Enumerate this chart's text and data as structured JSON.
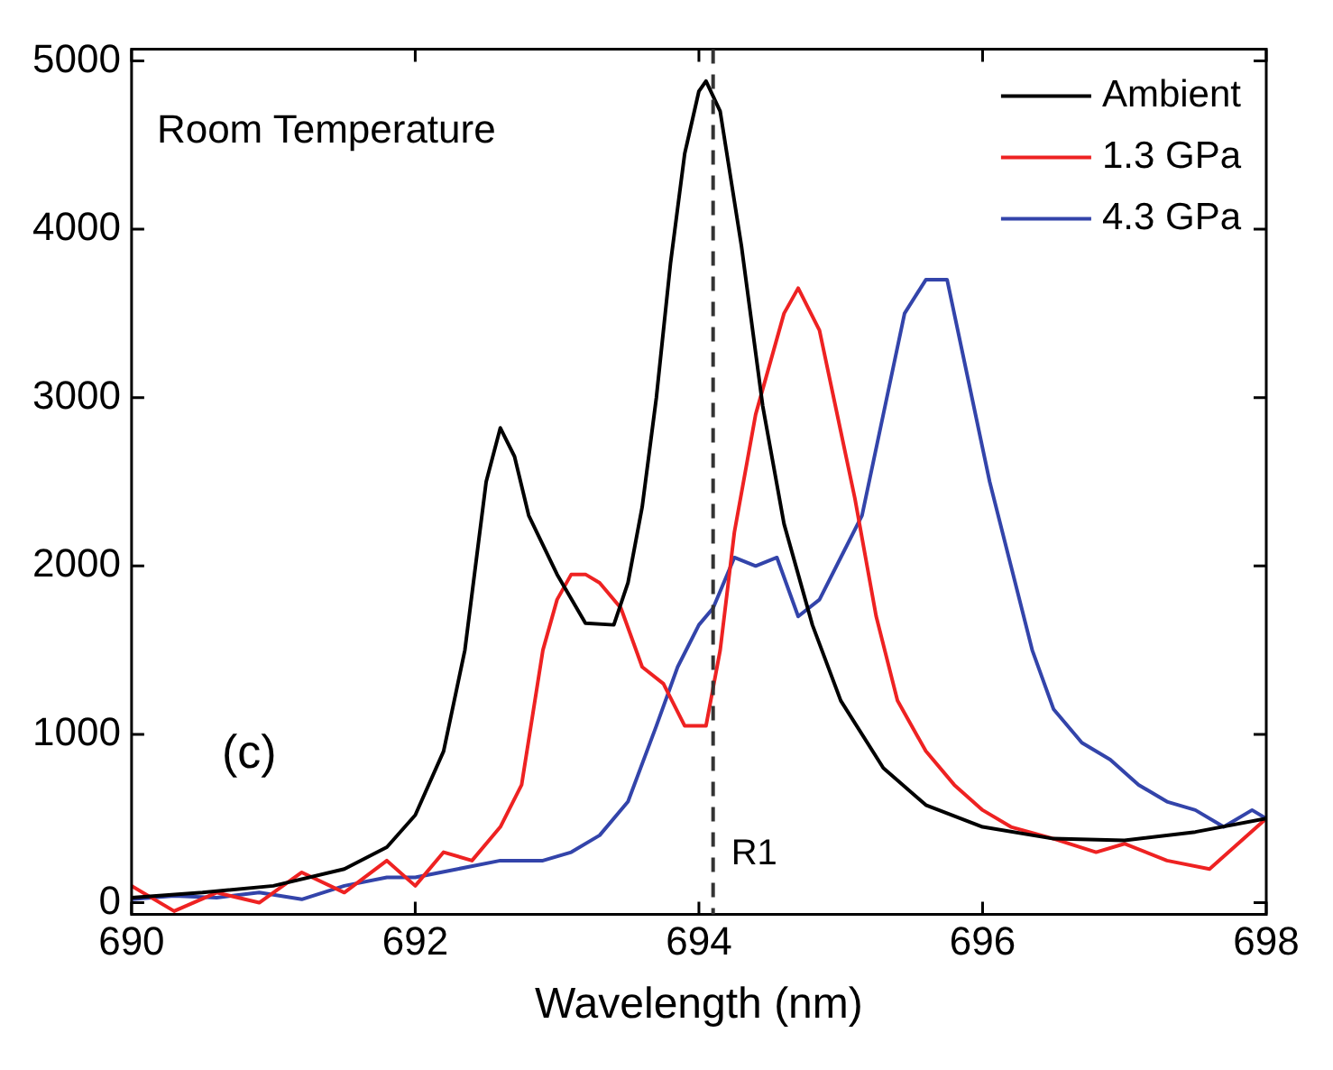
{
  "chart_data": {
    "type": "line",
    "xlabel": "Wavelength (nm)",
    "xlim": [
      690,
      698
    ],
    "xticks": [
      690,
      692,
      694,
      696,
      698
    ],
    "ylim": [
      -70,
      5070
    ],
    "yticks": [
      0,
      1000,
      2000,
      3000,
      4000,
      5000
    ],
    "legend": "top right",
    "marker": "none",
    "line_style": "solid",
    "annotations": [
      "Room Temperature",
      "(c)"
    ],
    "ref_lines": [
      {
        "axis": "x",
        "value": 694.1,
        "label": "R1",
        "color": "#333333",
        "line_style": "dashed"
      }
    ],
    "series": [
      {
        "name": "Ambient",
        "color": "#000000",
        "x": [
          690,
          690.5,
          691,
          691.5,
          691.8,
          692,
          692.2,
          692.35,
          692.5,
          692.6,
          692.7,
          692.8,
          693,
          693.2,
          693.4,
          693.5,
          693.6,
          693.7,
          693.8,
          693.9,
          694,
          694.05,
          694.15,
          694.3,
          694.45,
          694.6,
          694.8,
          695,
          695.3,
          695.6,
          696,
          696.5,
          697,
          697.5,
          698
        ],
        "values": [
          30,
          60,
          100,
          200,
          330,
          520,
          900,
          1500,
          2500,
          2820,
          2650,
          2300,
          1950,
          1660,
          1650,
          1900,
          2350,
          3000,
          3800,
          4450,
          4820,
          4880,
          4700,
          3900,
          2950,
          2250,
          1650,
          1200,
          800,
          580,
          450,
          380,
          370,
          420,
          500
        ]
      },
      {
        "name": "1.3 GPa",
        "color": "#ee2222",
        "x": [
          690,
          690.3,
          690.6,
          690.9,
          691.2,
          691.5,
          691.8,
          692,
          692.2,
          692.4,
          692.6,
          692.75,
          692.9,
          693,
          693.1,
          693.2,
          693.3,
          693.45,
          693.6,
          693.75,
          693.9,
          694.05,
          694.15,
          694.25,
          694.4,
          694.5,
          694.6,
          694.7,
          694.85,
          695,
          695.1,
          695.25,
          695.4,
          695.6,
          695.8,
          696,
          696.2,
          696.5,
          696.8,
          697,
          697.3,
          697.6,
          697.8,
          698
        ],
        "values": [
          100,
          -50,
          60,
          0,
          180,
          60,
          250,
          100,
          300,
          250,
          450,
          700,
          1500,
          1800,
          1950,
          1950,
          1900,
          1750,
          1400,
          1300,
          1050,
          1050,
          1500,
          2200,
          2900,
          3200,
          3500,
          3650,
          3400,
          2800,
          2400,
          1700,
          1200,
          900,
          700,
          550,
          450,
          380,
          300,
          350,
          250,
          200,
          350,
          500
        ]
      },
      {
        "name": "4.3 GPa",
        "color": "#3344aa",
        "x": [
          690,
          690.3,
          690.6,
          690.9,
          691.2,
          691.5,
          691.8,
          692,
          692.3,
          692.6,
          692.9,
          693.1,
          693.3,
          693.5,
          693.7,
          693.85,
          694,
          694.1,
          694.25,
          694.4,
          694.55,
          694.7,
          694.85,
          695,
          695.15,
          695.3,
          695.45,
          695.6,
          695.75,
          695.9,
          696.05,
          696.2,
          696.35,
          696.5,
          696.7,
          696.9,
          697.1,
          697.3,
          697.5,
          697.7,
          697.9,
          698
        ],
        "values": [
          20,
          40,
          30,
          60,
          20,
          100,
          150,
          150,
          200,
          250,
          250,
          300,
          400,
          600,
          1050,
          1400,
          1650,
          1750,
          2050,
          2000,
          2050,
          1700,
          1800,
          2050,
          2300,
          2900,
          3500,
          3700,
          3700,
          3100,
          2500,
          2000,
          1500,
          1150,
          950,
          850,
          700,
          600,
          550,
          450,
          550,
          500
        ]
      }
    ]
  }
}
